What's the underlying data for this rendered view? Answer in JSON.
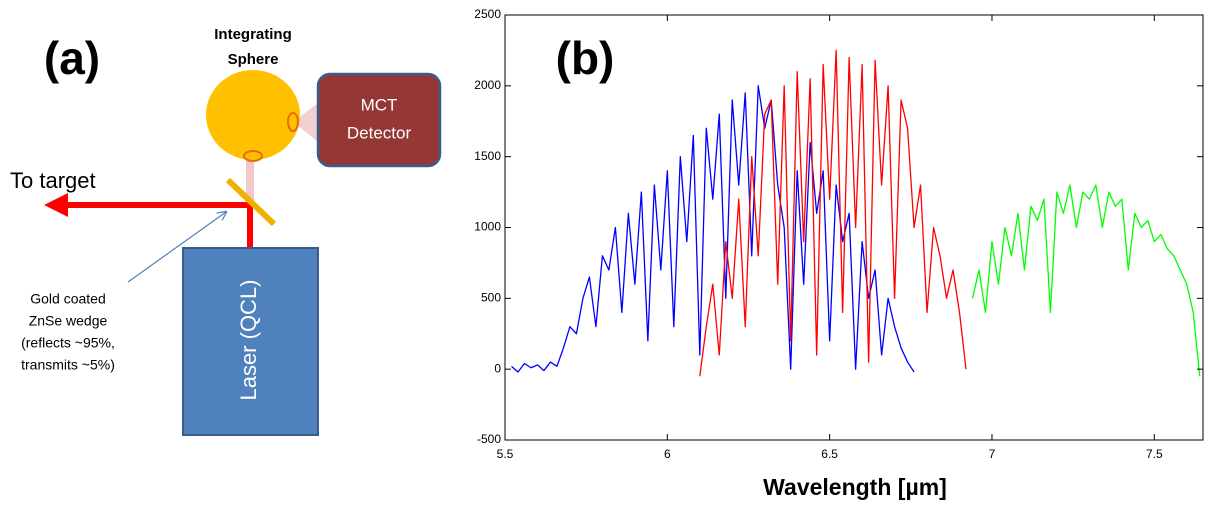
{
  "diagram": {
    "panel_label": "(a)",
    "sphere": {
      "label": [
        "Integrating",
        "Sphere"
      ]
    },
    "detector": {
      "label": [
        "MCT",
        "Detector"
      ]
    },
    "beam_out": {
      "label": "To target"
    },
    "laser": {
      "label": "Laser (QCL)"
    },
    "wedge": {
      "label": [
        "Gold coated",
        "ZnSe wedge",
        "(reflects ~95%,",
        "transmits ~5%)"
      ]
    }
  },
  "chart_data": {
    "type": "line",
    "panel_label": "(b)",
    "x_label": "Wavelength [µm]",
    "xlim": [
      5.5,
      7.65
    ],
    "xticks": [
      5.5,
      6,
      6.5,
      7,
      7.5
    ],
    "ylim": [
      -500,
      2500
    ],
    "yticks": [
      -500,
      0,
      500,
      1000,
      1500,
      2000,
      2500
    ],
    "series": [
      {
        "color": "#0000ff",
        "x": [
          5.52,
          5.54,
          5.56,
          5.58,
          5.6,
          5.62,
          5.64,
          5.66,
          5.68,
          5.7,
          5.72,
          5.74,
          5.76,
          5.78,
          5.8,
          5.82,
          5.84,
          5.86,
          5.88,
          5.9,
          5.92,
          5.94,
          5.96,
          5.98,
          6.0,
          6.02,
          6.04,
          6.06,
          6.08,
          6.1,
          6.12,
          6.14,
          6.16,
          6.18,
          6.2,
          6.22,
          6.24,
          6.26,
          6.28,
          6.3,
          6.32,
          6.34,
          6.36,
          6.38,
          6.4,
          6.42,
          6.44,
          6.46,
          6.48,
          6.5,
          6.52,
          6.54,
          6.56,
          6.58,
          6.6,
          6.62,
          6.64,
          6.66,
          6.68,
          6.7,
          6.72,
          6.74,
          6.76
        ],
        "values": [
          20,
          -20,
          40,
          10,
          30,
          -10,
          50,
          20,
          150,
          300,
          250,
          500,
          650,
          300,
          800,
          700,
          1000,
          400,
          1100,
          600,
          1250,
          200,
          1300,
          700,
          1400,
          300,
          1500,
          900,
          1650,
          100,
          1700,
          1200,
          1800,
          500,
          1900,
          1300,
          1950,
          800,
          2000,
          1700,
          1900,
          1300,
          1000,
          0,
          1400,
          600,
          1600,
          1100,
          1400,
          200,
          1300,
          900,
          1100,
          0,
          900,
          500,
          700,
          100,
          500,
          300,
          150,
          50,
          -20
        ]
      },
      {
        "color": "#ff0000",
        "x": [
          6.1,
          6.12,
          6.14,
          6.16,
          6.18,
          6.2,
          6.22,
          6.24,
          6.26,
          6.28,
          6.3,
          6.32,
          6.34,
          6.36,
          6.38,
          6.4,
          6.42,
          6.44,
          6.46,
          6.48,
          6.5,
          6.52,
          6.54,
          6.56,
          6.58,
          6.6,
          6.62,
          6.64,
          6.66,
          6.68,
          6.7,
          6.72,
          6.74,
          6.76,
          6.78,
          6.8,
          6.82,
          6.84,
          6.86,
          6.88,
          6.9,
          6.92
        ],
        "values": [
          -50,
          300,
          600,
          100,
          900,
          500,
          1200,
          300,
          1500,
          800,
          1800,
          1900,
          600,
          2000,
          200,
          2100,
          900,
          2050,
          100,
          2150,
          1200,
          2250,
          400,
          2200,
          1000,
          2150,
          50,
          2180,
          1300,
          2000,
          500,
          1900,
          1700,
          1000,
          1300,
          400,
          1000,
          800,
          500,
          700,
          400,
          0
        ]
      },
      {
        "color": "#00ff00",
        "x": [
          6.94,
          6.96,
          6.98,
          7.0,
          7.02,
          7.04,
          7.06,
          7.08,
          7.1,
          7.12,
          7.14,
          7.16,
          7.18,
          7.2,
          7.22,
          7.24,
          7.26,
          7.28,
          7.3,
          7.32,
          7.34,
          7.36,
          7.38,
          7.4,
          7.42,
          7.44,
          7.46,
          7.48,
          7.5,
          7.52,
          7.54,
          7.56,
          7.58,
          7.6,
          7.62,
          7.64
        ],
        "values": [
          500,
          700,
          400,
          900,
          600,
          1000,
          800,
          1100,
          700,
          1150,
          1050,
          1200,
          400,
          1250,
          1100,
          1300,
          1000,
          1250,
          1200,
          1300,
          1000,
          1250,
          1150,
          1200,
          700,
          1100,
          1000,
          1050,
          900,
          950,
          850,
          800,
          700,
          600,
          400,
          -50
        ]
      }
    ]
  }
}
